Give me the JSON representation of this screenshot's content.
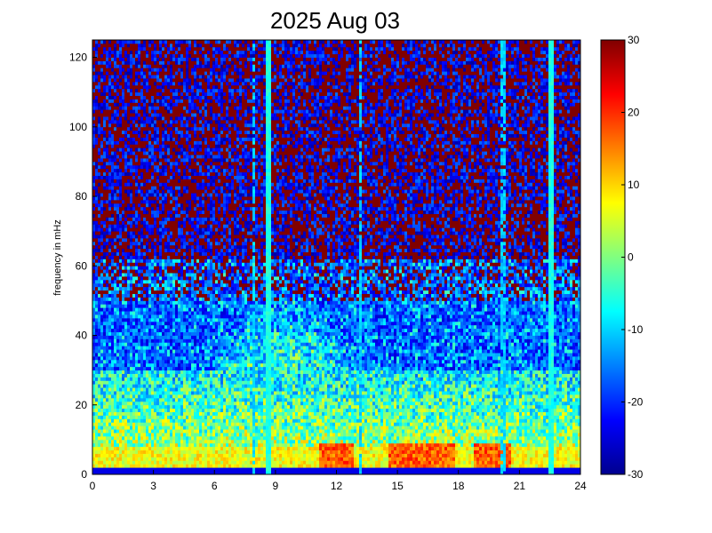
{
  "chart_data": {
    "type": "heatmap",
    "title": "2025 Aug 03",
    "xlabel": "",
    "ylabel": "frequency in mHz",
    "xlim": [
      0,
      24
    ],
    "ylim": [
      0,
      125
    ],
    "x_ticks": [
      "0",
      "3",
      "6",
      "9",
      "12",
      "15",
      "18",
      "21",
      "24"
    ],
    "y_ticks": [
      "0",
      "20",
      "40",
      "60",
      "80",
      "100",
      "120"
    ],
    "colorbar": {
      "range": [
        -30,
        30
      ],
      "ticks": [
        "30",
        "20",
        "10",
        "0",
        "-10",
        "-20",
        "-30"
      ],
      "colormap": "jet"
    },
    "features": {
      "vertical_streaks_hours": [
        8.6,
        22.6
      ],
      "weak_streaks_hours": [
        7.9,
        13.2,
        20.2
      ],
      "low_frequency_hot_band_mhz": [
        2,
        8
      ],
      "hot_patches_hours": [
        12,
        15.5,
        17,
        19.7
      ]
    }
  }
}
